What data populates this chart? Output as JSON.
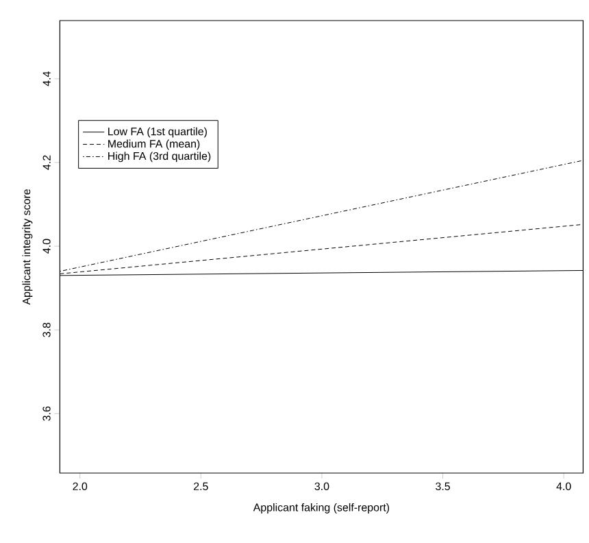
{
  "chart_data": {
    "type": "line",
    "xlabel": "Applicant faking (self-report)",
    "ylabel": "Applicant integrity score",
    "xlim": [
      1.917,
      4.08
    ],
    "ylim": [
      3.458,
      4.539
    ],
    "xticks": [
      {
        "value": 2,
        "label": "2.0"
      },
      2.5,
      {
        "value": 3,
        "label": "3.0"
      },
      3.5,
      {
        "value": 4,
        "label": "4.0"
      }
    ],
    "yticks": [
      3.6,
      3.8,
      {
        "value": 4,
        "label": "4.0"
      },
      4.2,
      4.4
    ],
    "x": [
      1.917,
      4.08
    ],
    "grid": false,
    "legend": "top left",
    "marker": "none",
    "series": [
      {
        "name": "Low FA (1st quartile)",
        "color": "#000000",
        "line_style": "solid",
        "values": [
          3.93,
          3.942
        ]
      },
      {
        "name": "Medium FA (mean)",
        "color": "#000000",
        "line_style": "dashed",
        "values": [
          3.934,
          4.052
        ]
      },
      {
        "name": "High FA (3rd quartile)",
        "color": "#000000",
        "line_style": "dashdot",
        "values": [
          3.94,
          4.205
        ]
      }
    ]
  }
}
